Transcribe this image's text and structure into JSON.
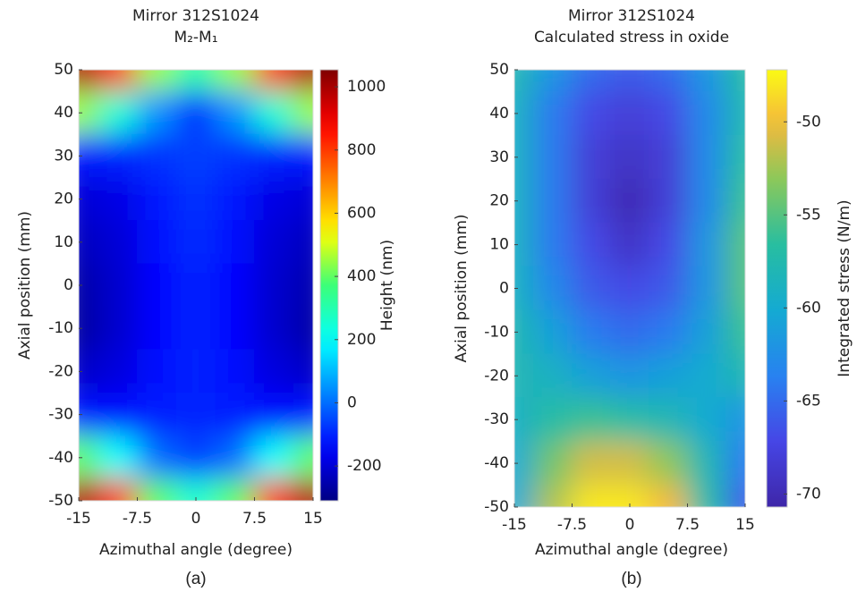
{
  "chart_data": [
    {
      "type": "heatmap",
      "title": "Mirror 312S1024",
      "subtitle": "M₂-M₁",
      "xlabel": "Azimuthal angle (degree)",
      "ylabel": "Axial position (mm)",
      "colorbar_label": "Height (nm)",
      "caption": "(a)",
      "colormap": "jet",
      "xlim": [
        -15,
        15
      ],
      "xticks": [
        -15,
        -7.5,
        0,
        7.5,
        15
      ],
      "ylim": [
        -50,
        50
      ],
      "yticks": [
        -50,
        -40,
        -30,
        -20,
        -10,
        0,
        10,
        20,
        30,
        40,
        50
      ],
      "zlim": [
        -310,
        1054
      ],
      "zticks": [
        -200,
        0,
        200,
        400,
        600,
        800,
        1000
      ],
      "x": [
        -15,
        -10,
        -5,
        0,
        5,
        10,
        15
      ],
      "y": [
        50,
        40,
        30,
        20,
        10,
        0,
        -10,
        -20,
        -30,
        -40,
        -50
      ],
      "z": [
        [
          1000,
          800,
          450,
          300,
          450,
          800,
          1000
        ],
        [
          450,
          250,
          50,
          -80,
          50,
          250,
          450
        ],
        [
          -120,
          -100,
          -80,
          -60,
          -80,
          -100,
          -120
        ],
        [
          -200,
          -180,
          -120,
          -80,
          -120,
          -180,
          -200
        ],
        [
          -230,
          -200,
          -130,
          -90,
          -130,
          -200,
          -230
        ],
        [
          -260,
          -210,
          -140,
          -100,
          -140,
          -210,
          -250
        ],
        [
          -270,
          -210,
          -140,
          -100,
          -140,
          -210,
          -260
        ],
        [
          -220,
          -190,
          -130,
          -100,
          -130,
          -190,
          -220
        ],
        [
          -120,
          -130,
          -110,
          -100,
          -110,
          -130,
          -120
        ],
        [
          400,
          200,
          0,
          -60,
          0,
          200,
          400
        ],
        [
          1000,
          800,
          400,
          250,
          400,
          800,
          1000
        ]
      ]
    },
    {
      "type": "heatmap",
      "title": "Mirror 312S1024",
      "subtitle": "Calculated stress in oxide",
      "xlabel": "Azimuthal angle (degree)",
      "ylabel": "Axial position (mm)",
      "colorbar_label": "Integrated stress (N/m)",
      "caption": "(b)",
      "colormap": "parula",
      "xlim": [
        -15,
        15
      ],
      "xticks": [
        -15,
        -7.5,
        0,
        7.5,
        15
      ],
      "ylim": [
        -50,
        50
      ],
      "yticks": [
        -50,
        -40,
        -30,
        -20,
        -10,
        0,
        10,
        20,
        30,
        40,
        50
      ],
      "zlim": [
        -70.7,
        -47.2
      ],
      "zticks": [
        -70,
        -65,
        -60,
        -55,
        -50
      ],
      "x": [
        -15,
        -10,
        -5,
        0,
        5,
        10,
        15
      ],
      "y": [
        50,
        40,
        30,
        20,
        10,
        0,
        -10,
        -20,
        -30,
        -40,
        -50
      ],
      "z": [
        [
          -58,
          -62,
          -65,
          -66,
          -65,
          -62,
          -57
        ],
        [
          -59,
          -64,
          -67,
          -68,
          -67,
          -63,
          -58
        ],
        [
          -59,
          -64,
          -68,
          -69,
          -68,
          -63,
          -57
        ],
        [
          -59,
          -64,
          -68,
          -70,
          -68,
          -63,
          -56
        ],
        [
          -59,
          -64,
          -67,
          -69,
          -67,
          -62,
          -55
        ],
        [
          -59,
          -63,
          -66,
          -67,
          -66,
          -62,
          -55
        ],
        [
          -58,
          -61,
          -64,
          -65,
          -64,
          -61,
          -56
        ],
        [
          -58,
          -59,
          -61,
          -62,
          -61,
          -60,
          -58
        ],
        [
          -59,
          -57,
          -56,
          -57,
          -58,
          -60,
          -62
        ],
        [
          -60,
          -54,
          -51,
          -51,
          -53,
          -58,
          -64
        ],
        [
          -60,
          -52,
          -48,
          -48,
          -50,
          -57,
          -66
        ]
      ]
    }
  ]
}
